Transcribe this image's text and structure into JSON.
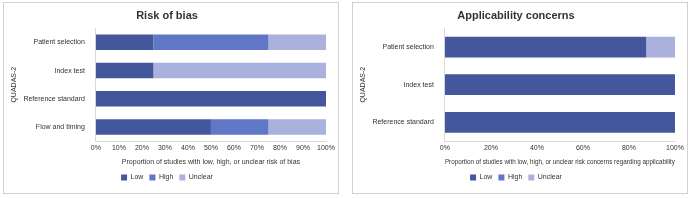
{
  "chart_data": [
    {
      "type": "bar",
      "title": "Risk of bias",
      "orientation": "horizontal",
      "stacked": true,
      "grid": false,
      "legend": "bottom",
      "x_label": "Proportion of studies with low, high, or unclear risk of bias",
      "y_label": "QUADAS-2",
      "categories": [
        "Patient selection",
        "Index test",
        "Reference standard",
        "Flow and timing"
      ],
      "series": [
        {
          "name": "Low",
          "color": "#44579c",
          "values": [
            25,
            25,
            100,
            50
          ]
        },
        {
          "name": "High",
          "color": "#5f77c6",
          "values": [
            50,
            0,
            0,
            25
          ]
        },
        {
          "name": "Unclear",
          "color": "#aab1dc",
          "values": [
            25,
            75,
            0,
            25
          ]
        }
      ],
      "xlim": [
        0,
        100
      ],
      "xticks": [
        {
          "value": 0,
          "label": "0%"
        },
        {
          "value": 10,
          "label": "10%"
        },
        {
          "value": 20,
          "label": "20%"
        },
        {
          "value": 30,
          "label": "30%"
        },
        {
          "value": 40,
          "label": "40%"
        },
        {
          "value": 50,
          "label": "50%"
        },
        {
          "value": 60,
          "label": "60%"
        },
        {
          "value": 70,
          "label": "70%"
        },
        {
          "value": 80,
          "label": "80%"
        },
        {
          "value": 90,
          "label": "90%"
        },
        {
          "value": 100,
          "label": "100%"
        }
      ]
    },
    {
      "type": "bar",
      "title": "Applicability concerns",
      "orientation": "horizontal",
      "stacked": true,
      "grid": false,
      "legend": "bottom",
      "x_label": "Proportion of studies with low, high, or unclear risk concerns regarding applicability",
      "y_label": "QUADAS-2",
      "categories": [
        "Patient selection",
        "Index test",
        "Reference standard"
      ],
      "series": [
        {
          "name": "Low",
          "color": "#44579c",
          "values": [
            87.5,
            100,
            100
          ]
        },
        {
          "name": "High",
          "color": "#5f77c6",
          "values": [
            0,
            0,
            0
          ]
        },
        {
          "name": "Unclear",
          "color": "#aab1dc",
          "values": [
            12.5,
            0,
            0
          ]
        }
      ],
      "xlim": [
        0,
        100
      ],
      "xticks": [
        {
          "value": 0,
          "label": "0%"
        },
        {
          "value": 20,
          "label": "20%"
        },
        {
          "value": 40,
          "label": "40%"
        },
        {
          "value": 60,
          "label": "60%"
        },
        {
          "value": 80,
          "label": "80%"
        },
        {
          "value": 100,
          "label": "100%"
        }
      ]
    }
  ]
}
